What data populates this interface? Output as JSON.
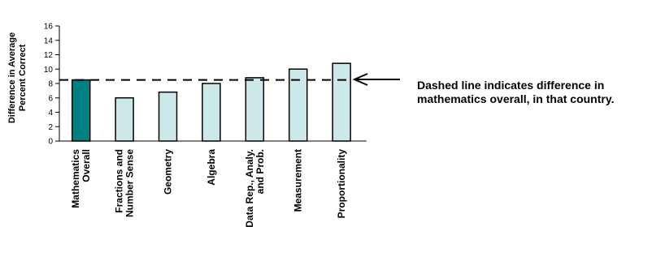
{
  "chart_data": {
    "type": "bar",
    "ylabel_lines": [
      "Difference in Average",
      "Percent Correct"
    ],
    "ylim": [
      0,
      16
    ],
    "yticks": [
      "0",
      "2",
      "4",
      "6",
      "8",
      "10",
      "12",
      "14",
      "16"
    ],
    "categories": [
      [
        "Mathematics",
        "Overall"
      ],
      [
        "Fractions and",
        "Number Sense"
      ],
      [
        "Geometry"
      ],
      [
        "Algebra"
      ],
      [
        "Data Rep., Analy.",
        "and Prob."
      ],
      [
        "Measurement"
      ],
      [
        "Proportionality"
      ]
    ],
    "values": [
      8.5,
      6,
      6.8,
      8,
      8.8,
      10,
      10.8
    ],
    "reference_line": 8.5,
    "annotation_lines": [
      "Dashed line indicates difference in",
      "mathematics overall, in that country."
    ],
    "colors": {
      "overall_bar": "#008080",
      "content_bar": "#CCE8E8",
      "bar_outline": "#000000"
    }
  }
}
